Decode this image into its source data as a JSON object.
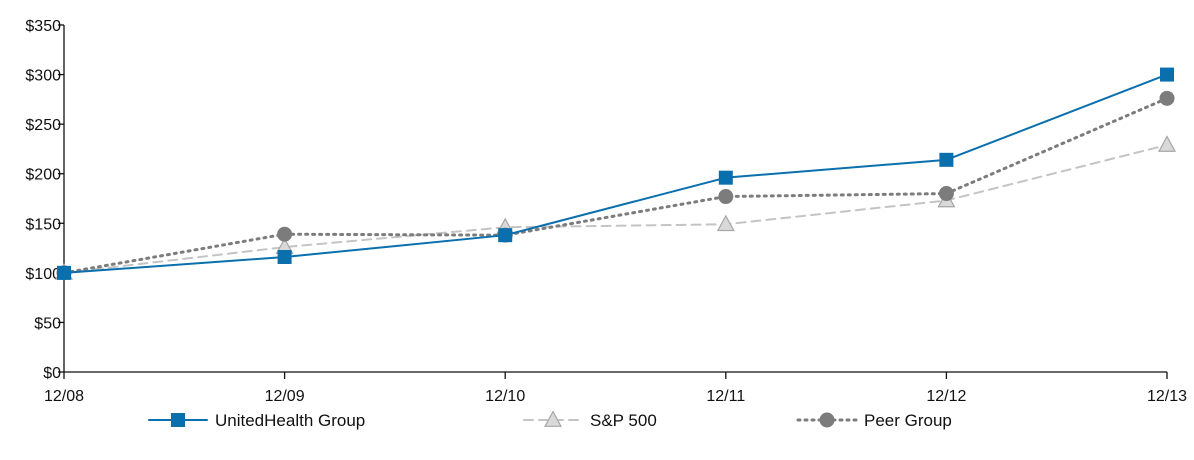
{
  "chart_data": {
    "type": "line",
    "title": "",
    "xlabel": "",
    "ylabel": "",
    "categories": [
      "12/08",
      "12/09",
      "12/10",
      "12/11",
      "12/12",
      "12/13"
    ],
    "ylim": [
      0,
      350
    ],
    "yticks": [
      0,
      50,
      100,
      150,
      200,
      250,
      300,
      350
    ],
    "ytick_labels": [
      "$0",
      "$50",
      "$100",
      "$150",
      "$200",
      "$250",
      "$300",
      "$350"
    ],
    "grid": false,
    "legend_position": "bottom",
    "series": [
      {
        "name": "UnitedHealth Group",
        "values": [
          100,
          116,
          138,
          196,
          214,
          300
        ],
        "color": "#0a6fad",
        "marker": "square",
        "line_style": "solid"
      },
      {
        "name": "S&P 500",
        "values": [
          100,
          126,
          146,
          149,
          173,
          229
        ],
        "color": "#c4c4c4",
        "marker": "triangle",
        "line_style": "dashed"
      },
      {
        "name": "Peer Group",
        "values": [
          100,
          139,
          138,
          177,
          180,
          276
        ],
        "color": "#7c7c7c",
        "marker": "circle",
        "line_style": "dotted"
      }
    ]
  }
}
